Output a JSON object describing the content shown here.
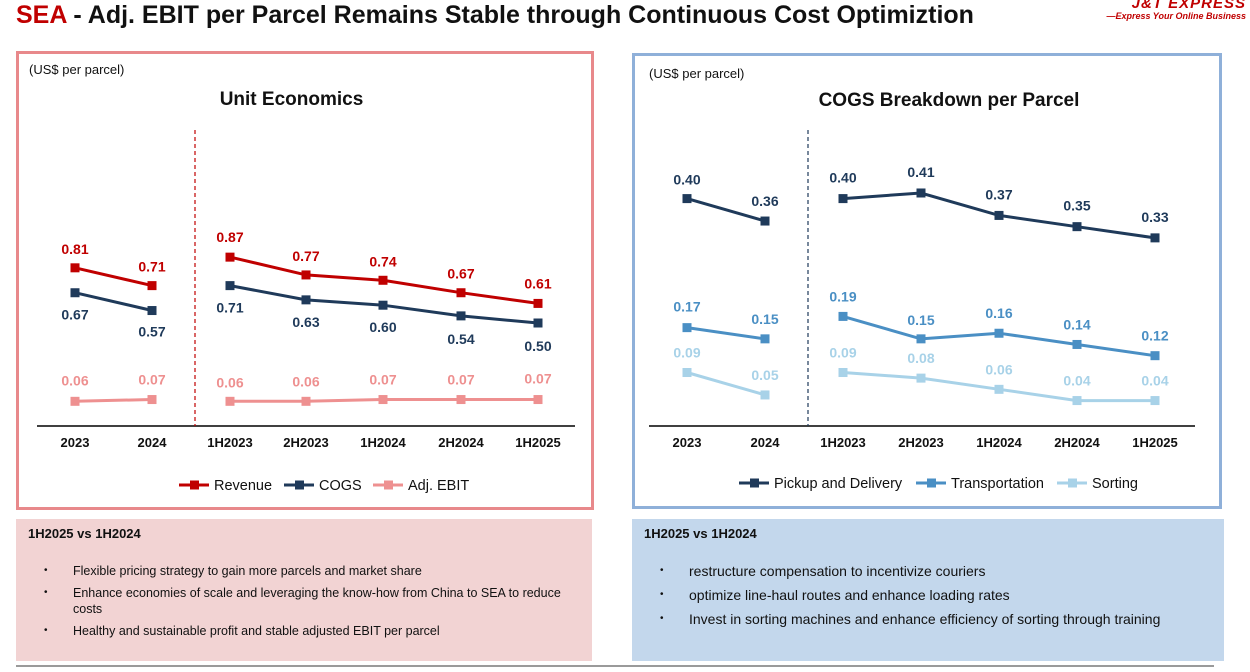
{
  "header": {
    "title_prefix": "SEA",
    "title_rest": " - Adj. EBIT per Parcel Remains Stable through Continuous Cost Optimiztion",
    "logo_mark": "J&T",
    "logo_brand": "EXPRESS",
    "logo_tagline": "—Express Your Online Business"
  },
  "colors": {
    "revenue": "#c00000",
    "cogs": "#1f3a5a",
    "adj_ebit": "#ee9090",
    "pickup": "#1f3a5a",
    "transportation": "#4a8fc4",
    "sorting": "#a8d2e8",
    "left_border": "#e8898b",
    "right_border": "#8fb0d9"
  },
  "chart_data": [
    {
      "type": "line",
      "unit_note": "(US$ per parcel)",
      "title": "Unit Economics",
      "categories": [
        "2023",
        "2024",
        "1H2023",
        "2H2023",
        "1H2024",
        "2H2024",
        "1H2025"
      ],
      "separator_after_index": 1,
      "series": [
        {
          "name": "Revenue",
          "values": [
            0.81,
            0.71,
            0.87,
            0.77,
            0.74,
            0.67,
            0.61
          ],
          "labels": [
            "0.81",
            "0.71",
            "0.87",
            "0.77",
            "0.74",
            "0.67",
            "0.61"
          ]
        },
        {
          "name": "COGS",
          "values": [
            0.67,
            0.57,
            0.71,
            0.63,
            0.6,
            0.54,
            0.5
          ],
          "labels": [
            "0.67",
            "0.57",
            "0.71",
            "0.63",
            "0.60",
            "0.54",
            "0.50"
          ]
        },
        {
          "name": "Adj. EBIT",
          "values": [
            0.06,
            0.07,
            0.06,
            0.06,
            0.07,
            0.07,
            0.07
          ],
          "labels": [
            "0.06",
            "0.07",
            "0.06",
            "0.06",
            "0.07",
            "0.07",
            "0.07"
          ]
        }
      ],
      "legend": [
        "Revenue",
        "COGS",
        "Adj. EBIT"
      ]
    },
    {
      "type": "line",
      "unit_note": "(US$ per parcel)",
      "title": "COGS Breakdown per Parcel",
      "categories": [
        "2023",
        "2024",
        "1H2023",
        "2H2023",
        "1H2024",
        "2H2024",
        "1H2025"
      ],
      "separator_after_index": 1,
      "series": [
        {
          "name": "Pickup and Delivery",
          "values": [
            0.4,
            0.36,
            0.4,
            0.41,
            0.37,
            0.35,
            0.33
          ],
          "labels": [
            "0.40",
            "0.36",
            "0.40",
            "0.41",
            "0.37",
            "0.35",
            "0.33"
          ]
        },
        {
          "name": "Transportation",
          "values": [
            0.17,
            0.15,
            0.19,
            0.15,
            0.16,
            0.14,
            0.12
          ],
          "labels": [
            "0.17",
            "0.15",
            "0.19",
            "0.15",
            "0.16",
            "0.14",
            "0.12"
          ]
        },
        {
          "name": "Sorting",
          "values": [
            0.09,
            0.05,
            0.09,
            0.08,
            0.06,
            0.04,
            0.04
          ],
          "labels": [
            "0.09",
            "0.05",
            "0.09",
            "0.08",
            "0.06",
            "0.04",
            "0.04"
          ]
        }
      ],
      "legend": [
        "Pickup and Delivery",
        "Transportation",
        "Sorting"
      ]
    }
  ],
  "left_box": {
    "heading": "1H2025 vs 1H2024",
    "bullet_symbol": "•",
    "bullets": [
      "Flexible pricing strategy to gain more parcels and market share",
      "Enhance economies of scale and leveraging the know-how from China to SEA to reduce costs",
      "Healthy and sustainable profit and stable adjusted EBIT per parcel"
    ]
  },
  "right_box": {
    "heading": "1H2025 vs 1H2024",
    "bullet_symbol": "•",
    "bullets": [
      "restructure compensation to incentivize couriers",
      "optimize line-haul routes and enhance loading rates",
      "Invest in sorting machines and enhance efficiency of sorting through training"
    ]
  }
}
